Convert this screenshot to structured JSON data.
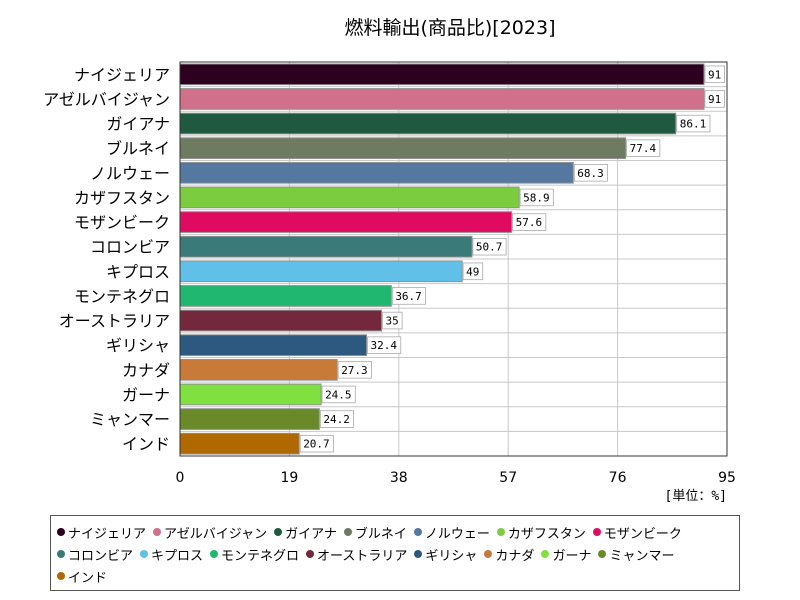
{
  "chart_data": {
    "type": "bar",
    "orientation": "horizontal",
    "title": "燃料輸出(商品比)[2023]",
    "unit_label": "[単位：%]",
    "xlim": [
      0,
      95
    ],
    "xticks": [
      "0",
      "19",
      "38",
      "57",
      "76",
      "95"
    ],
    "grid": true,
    "legend_position": "bottom",
    "categories": [
      "ナイジェリア",
      "アゼルバイジャン",
      "ガイアナ",
      "ブルネイ",
      "ノルウェー",
      "カザフスタン",
      "モザンビーク",
      "コロンビア",
      "キプロス",
      "モンテネグロ",
      "オーストラリア",
      "ギリシャ",
      "カナダ",
      "ガーナ",
      "ミャンマー",
      "インド"
    ],
    "values": [
      91,
      91,
      86.1,
      77.4,
      68.3,
      58.9,
      57.6,
      50.7,
      49,
      36.7,
      35,
      32.4,
      27.3,
      24.5,
      24.2,
      20.7
    ],
    "value_labels": [
      "91",
      "91",
      "86.1",
      "77.4",
      "68.3",
      "58.9",
      "57.6",
      "50.7",
      "49",
      "36.7",
      "35",
      "32.4",
      "27.3",
      "24.5",
      "24.2",
      "20.7"
    ],
    "colors": [
      "#2d0020",
      "#d0708a",
      "#1f5a40",
      "#6e7b60",
      "#5578a0",
      "#7ccc40",
      "#e00b60",
      "#3a7a78",
      "#60c0e8",
      "#20b870",
      "#74283e",
      "#2d5880",
      "#c87a38",
      "#80e040",
      "#6a8a2a",
      "#b06800"
    ]
  }
}
